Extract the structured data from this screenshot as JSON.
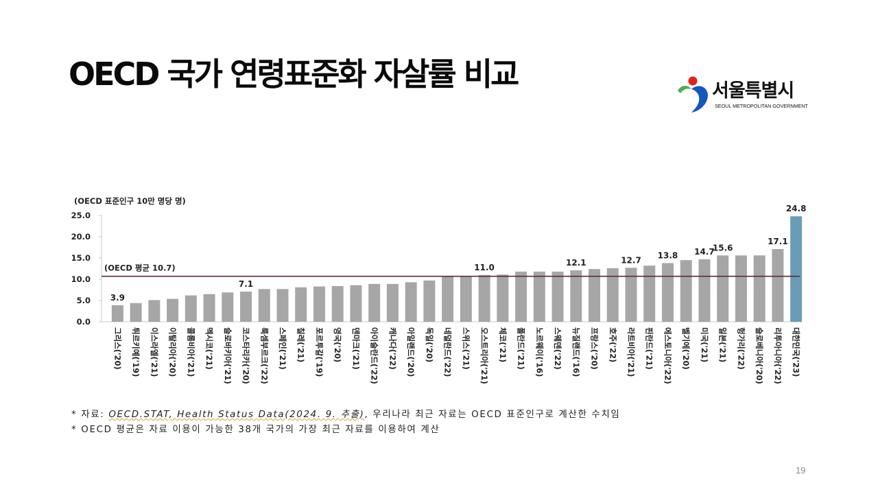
{
  "slide": {
    "title": "OECD 국가 연령표준화 자살률 비교",
    "page_number": "19"
  },
  "logo": {
    "name": "서울특별시",
    "subtitle": "SEOUL METROPOLITAN GOVERNMENT"
  },
  "chart_data": {
    "type": "bar",
    "ylabel": "(OECD 표준인구 10만 명당 명)",
    "ylim": [
      0,
      25
    ],
    "yticks": [
      "0.0",
      "5.0",
      "10.0",
      "15.0",
      "20.0",
      "25.0"
    ],
    "categories": [
      "그리스('20)",
      "튀르키예('19)",
      "이스라엘('21)",
      "이탈리아('20)",
      "콜롬비아('21)",
      "멕시코('21)",
      "슬로바키아('21)",
      "코스타리카('20)",
      "룩셈부르크('22)",
      "스페인('21)",
      "칠레('21)",
      "포르투갈('19)",
      "영국('20)",
      "덴마크('21)",
      "아이슬란드('22)",
      "캐나다('22)",
      "아일랜드('20)",
      "독일('20)",
      "네덜란드('22)",
      "스위스('21)",
      "오스트리아('21)",
      "체코('21)",
      "폴란드('21)",
      "노르웨이('16)",
      "스웨덴('22)",
      "뉴질랜드('16)",
      "프랑스('20)",
      "호주('22)",
      "라트비아('21)",
      "핀란드('21)",
      "에스토니아('22)",
      "벨기에('20)",
      "미국('21)",
      "일본('21)",
      "헝가리('22)",
      "슬로베니아('20)",
      "리투아니아('22)",
      "대한민국('23)"
    ],
    "values": [
      3.9,
      4.4,
      5.1,
      5.4,
      6.2,
      6.5,
      6.9,
      7.1,
      7.7,
      7.7,
      8.1,
      8.3,
      8.4,
      8.6,
      8.9,
      8.9,
      9.3,
      9.7,
      10.6,
      10.7,
      11.0,
      11.1,
      11.8,
      11.8,
      11.8,
      12.1,
      12.4,
      12.6,
      12.7,
      13.2,
      13.8,
      14.5,
      14.7,
      15.6,
      15.6,
      15.6,
      17.1,
      24.8
    ],
    "data_labels": [
      {
        "index": 0,
        "text": "3.9"
      },
      {
        "index": 7,
        "text": "7.1"
      },
      {
        "index": 20,
        "text": "11.0"
      },
      {
        "index": 25,
        "text": "12.1"
      },
      {
        "index": 28,
        "text": "12.7"
      },
      {
        "index": 30,
        "text": "13.8"
      },
      {
        "index": 32,
        "text": "14.7"
      },
      {
        "index": 33,
        "text": "15.6"
      },
      {
        "index": 36,
        "text": "17.1"
      },
      {
        "index": 37,
        "text": "24.8"
      }
    ],
    "reference_line": {
      "label": "(OECD 평균 10.7)",
      "value": 10.7,
      "color": "#5a2a3c"
    },
    "bar_color": "#a6a6a6",
    "highlight_color": "#6a9cb8",
    "highlight_index": 37,
    "grid": false
  },
  "footnotes": {
    "line1_prefix": "* 자료: ",
    "line1_source": "OECD.STAT, Health Status Data(2024. 9. 추출)",
    "line1_suffix": ", 우리나라 최근 자료는 OECD 표준인구로 계산한 수치임",
    "line2": "* OECD 평균은 자료 이용이 가능한 38개 국가의 가장 최근 자료를 이용하여 계산"
  }
}
